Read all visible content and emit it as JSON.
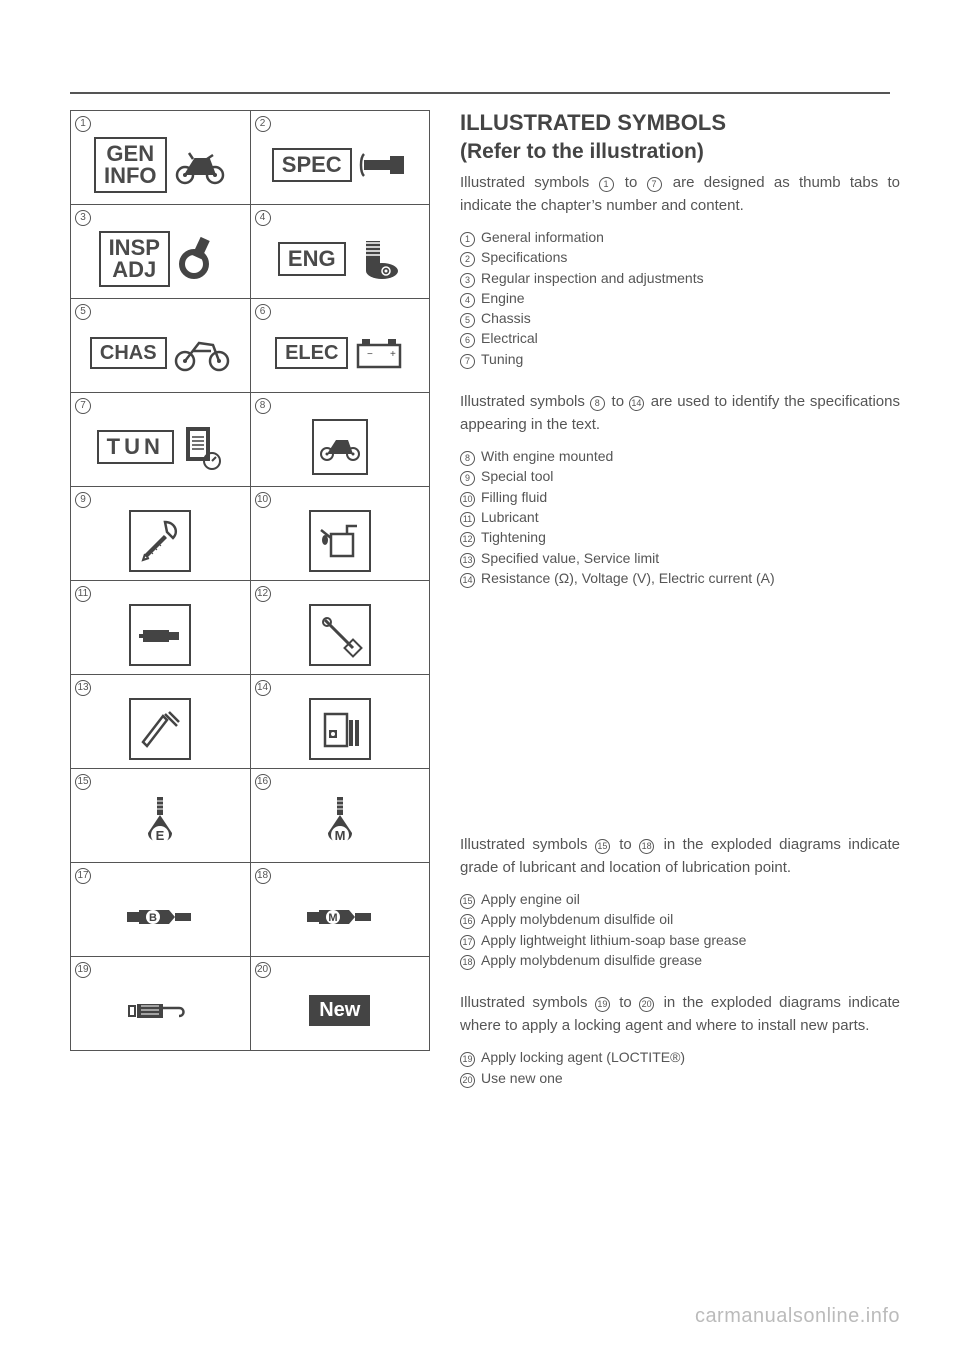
{
  "colors": {
    "text": "#4a4a4a",
    "rule": "#555555",
    "watermark": "#bbbbbb"
  },
  "symbol_grid": {
    "cells": [
      {
        "n": "1",
        "label": "GEN\nINFO",
        "icon": "motorcycle"
      },
      {
        "n": "2",
        "label": "SPEC",
        "icon": "torque"
      },
      {
        "n": "3",
        "label": "INSP\nADJ",
        "icon": "inspect"
      },
      {
        "n": "4",
        "label": "ENG",
        "icon": "engine"
      },
      {
        "n": "5",
        "label": "CHAS",
        "icon": "chassis"
      },
      {
        "n": "6",
        "label": "ELEC",
        "icon": "battery"
      },
      {
        "n": "7",
        "label": "TUN",
        "icon": "clipboard"
      },
      {
        "n": "8",
        "label": "",
        "icon": "moto-frame"
      },
      {
        "n": "9",
        "label": "",
        "icon": "special-tool"
      },
      {
        "n": "10",
        "label": "",
        "icon": "oil-can"
      },
      {
        "n": "11",
        "label": "",
        "icon": "grease-gun"
      },
      {
        "n": "12",
        "label": "",
        "icon": "torque-wrench"
      },
      {
        "n": "13",
        "label": "",
        "icon": "gauge"
      },
      {
        "n": "14",
        "label": "",
        "icon": "meter"
      },
      {
        "n": "15",
        "label": "",
        "icon": "oil-drop-E"
      },
      {
        "n": "16",
        "label": "",
        "icon": "oil-drop-M"
      },
      {
        "n": "17",
        "label": "",
        "icon": "grease-B"
      },
      {
        "n": "18",
        "label": "",
        "icon": "grease-M"
      },
      {
        "n": "19",
        "label": "",
        "icon": "loctite"
      },
      {
        "n": "20",
        "label": "New",
        "icon": "new"
      }
    ]
  },
  "right": {
    "title": "ILLUSTRATED SYMBOLS",
    "subtitle": "(Refer to the illustration)",
    "para1_a": "Illustrated symbols ",
    "para1_b": " to ",
    "para1_c": " are designed as thumb tabs to indicate the chapter’s number and content.",
    "list1": [
      {
        "n": "1",
        "t": "General information"
      },
      {
        "n": "2",
        "t": "Specifications"
      },
      {
        "n": "3",
        "t": "Regular inspection and adjustments"
      },
      {
        "n": "4",
        "t": "Engine"
      },
      {
        "n": "5",
        "t": "Chassis"
      },
      {
        "n": "6",
        "t": "Electrical"
      },
      {
        "n": "7",
        "t": "Tuning"
      }
    ],
    "para2_a": "Illustrated symbols ",
    "para2_b": " to ",
    "para2_c": " are used to identify the specifications appearing in the text.",
    "list2": [
      {
        "n": "8",
        "t": "With engine mounted"
      },
      {
        "n": "9",
        "t": "Special tool"
      },
      {
        "n": "10",
        "t": "Filling fluid"
      },
      {
        "n": "11",
        "t": "Lubricant"
      },
      {
        "n": "12",
        "t": "Tightening"
      },
      {
        "n": "13",
        "t": "Specified value, Service limit"
      },
      {
        "n": "14",
        "t": "Resistance (Ω), Voltage (V), Electric current (A)"
      }
    ],
    "para3_a": "Illustrated symbols ",
    "para3_b": " to ",
    "para3_c": " in the exploded diagrams indicate grade of lubricant and location of lubrication point.",
    "list3": [
      {
        "n": "15",
        "t": "Apply engine oil"
      },
      {
        "n": "16",
        "t": "Apply molybdenum disulfide oil"
      },
      {
        "n": "17",
        "t": "Apply lightweight lithium-soap base grease"
      },
      {
        "n": "18",
        "t": "Apply molybdenum disulfide grease"
      }
    ],
    "para4_a": "Illustrated symbols ",
    "para4_b": " to ",
    "para4_c": " in the exploded diagrams indicate where to apply a locking agent and where to install new parts.",
    "list4": [
      {
        "n": "19",
        "t": "Apply locking agent (LOCTITE®)"
      },
      {
        "n": "20",
        "t": "Use new one"
      }
    ],
    "refs": {
      "r1": "1",
      "r7": "7",
      "r8": "8",
      "r14": "14",
      "r15": "15",
      "r18": "18",
      "r19": "19",
      "r20": "20"
    }
  },
  "watermark": "carmanualsonline.info"
}
